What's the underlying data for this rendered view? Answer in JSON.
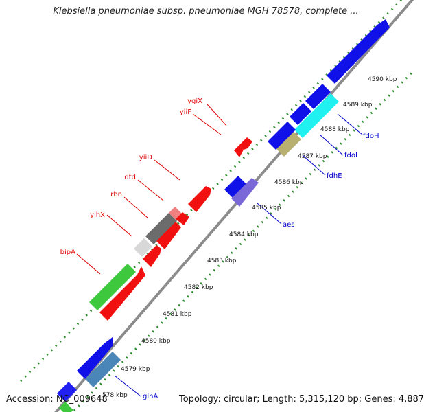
{
  "title": "Klebsiella pneumoniae subsp. pneumoniae MGH 78578, complete ...",
  "accession": "Accession: NC_009648",
  "summary": "Topology: circular; Length: 5,315,120 bp; Genes: 4,887",
  "colors": {
    "backbone": "#8c8c8c",
    "tick": "#2e8b2e",
    "label_red": "#e00000",
    "label_blue": "#0000cc",
    "kbp_text": "#111111"
  },
  "scale_labels": [
    "578 kbp",
    "4579 kbp",
    "4580 kbp",
    "4581 kbp",
    "4582 kbp",
    "4583 kbp",
    "4584 kbp",
    "4585 kbp",
    "4586 kbp",
    "4587 kbp",
    "4588 kbp",
    "4589 kbp",
    "4590 kbp"
  ],
  "gene_labels_left": [
    "ygiX",
    "yiiF",
    "yiiD",
    "dtd",
    "rbn",
    "yihX",
    "bipA"
  ],
  "gene_labels_right": [
    "fdoH",
    "fdoI",
    "fdhE",
    "aes",
    "glnA"
  ]
}
